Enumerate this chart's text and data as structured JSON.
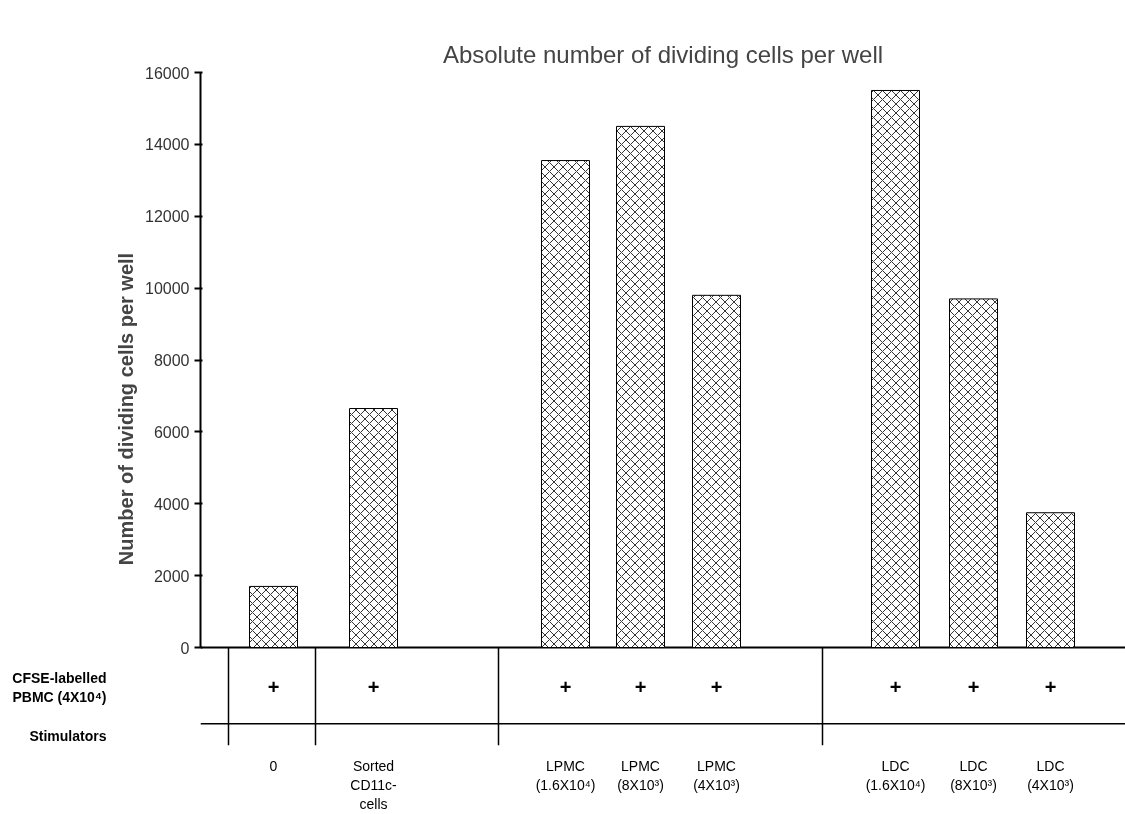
{
  "chart_data": {
    "type": "bar",
    "title": "Absolute number of dividing cells per well",
    "ylabel": "Number of dividing cells per well",
    "categories": [
      "0",
      "Sorted CD11c- cells",
      "LPMC (1.6X10⁴)",
      "LPMC (8X10³)",
      "LPMC (4X10³)",
      "LDC (1.6X10⁴)",
      "LDC (8X10³)",
      "LDC (4X10³)"
    ],
    "values": [
      1700,
      6650,
      13550,
      14500,
      9800,
      15500,
      9700,
      3750
    ],
    "color": "#000000",
    "ylim": [
      0,
      16000
    ],
    "yticks": [
      0,
      2000,
      4000,
      6000,
      8000,
      10000,
      12000,
      14000,
      16000
    ],
    "grid": false,
    "annotations": [
      "CFSE-labelled PBMC (4X10⁴)",
      "Stimulators",
      "+",
      "+",
      "+",
      "+",
      "+",
      "+",
      "+",
      "+"
    ]
  }
}
